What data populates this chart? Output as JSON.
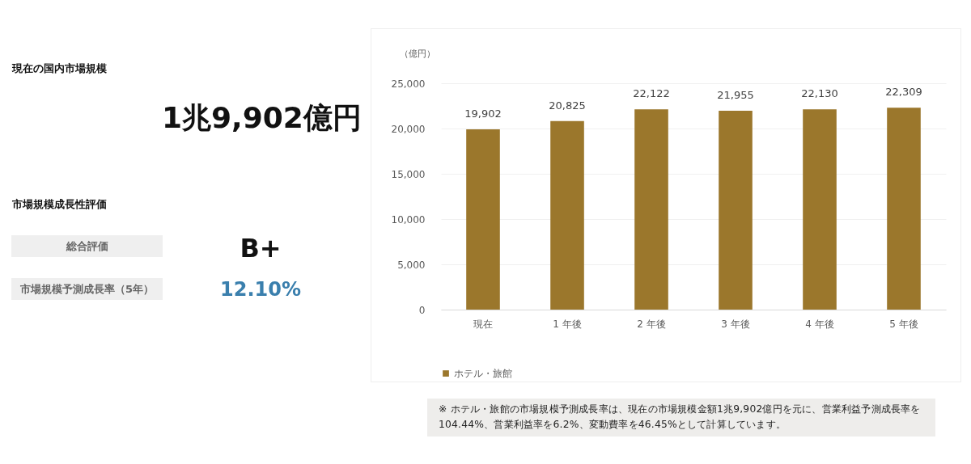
{
  "chart_data": [
    {
      "type": "other",
      "annotations": [
        "現在の国内市場規模",
        "1兆9,902億円",
        "市場規模成長性評価",
        "総合評価",
        "B+",
        "市場規模予測成長率（5年）",
        "12.10%"
      ]
    },
    {
      "type": "bar",
      "ylabel": "（億円）",
      "categories": [
        "現在",
        "1 年後",
        "2 年後",
        "3 年後",
        "4 年後",
        "5 年後"
      ],
      "series": [
        {
          "name": "ホテル・旅館",
          "color": "#9b772c",
          "values": [
            19902,
            20825,
            22122,
            21955,
            22130,
            22309
          ],
          "value_labels": [
            "19,902",
            "20,825",
            "22,122",
            "21,955",
            "22,130",
            "22,309"
          ]
        }
      ],
      "ylim": [
        0,
        25000
      ],
      "yticks": [
        0,
        {
          "value": 5000,
          "label": "5,000"
        },
        {
          "value": 10000,
          "label": "10,000"
        },
        {
          "value": 15000,
          "label": "15,000"
        },
        {
          "value": 20000,
          "label": "20,000"
        },
        {
          "value": 25000,
          "label": "25,000"
        }
      ],
      "grid": "y",
      "legend": "bottom",
      "annotations": [
        "※ ホテル・旅館の市場規模予測成長率は、現在の市場規模金額1兆9,902億円を元に、営業利益予測成長率を104.44%、営業利益率を6.2%、変動費率を46.45%として計算しています。"
      ]
    }
  ]
}
